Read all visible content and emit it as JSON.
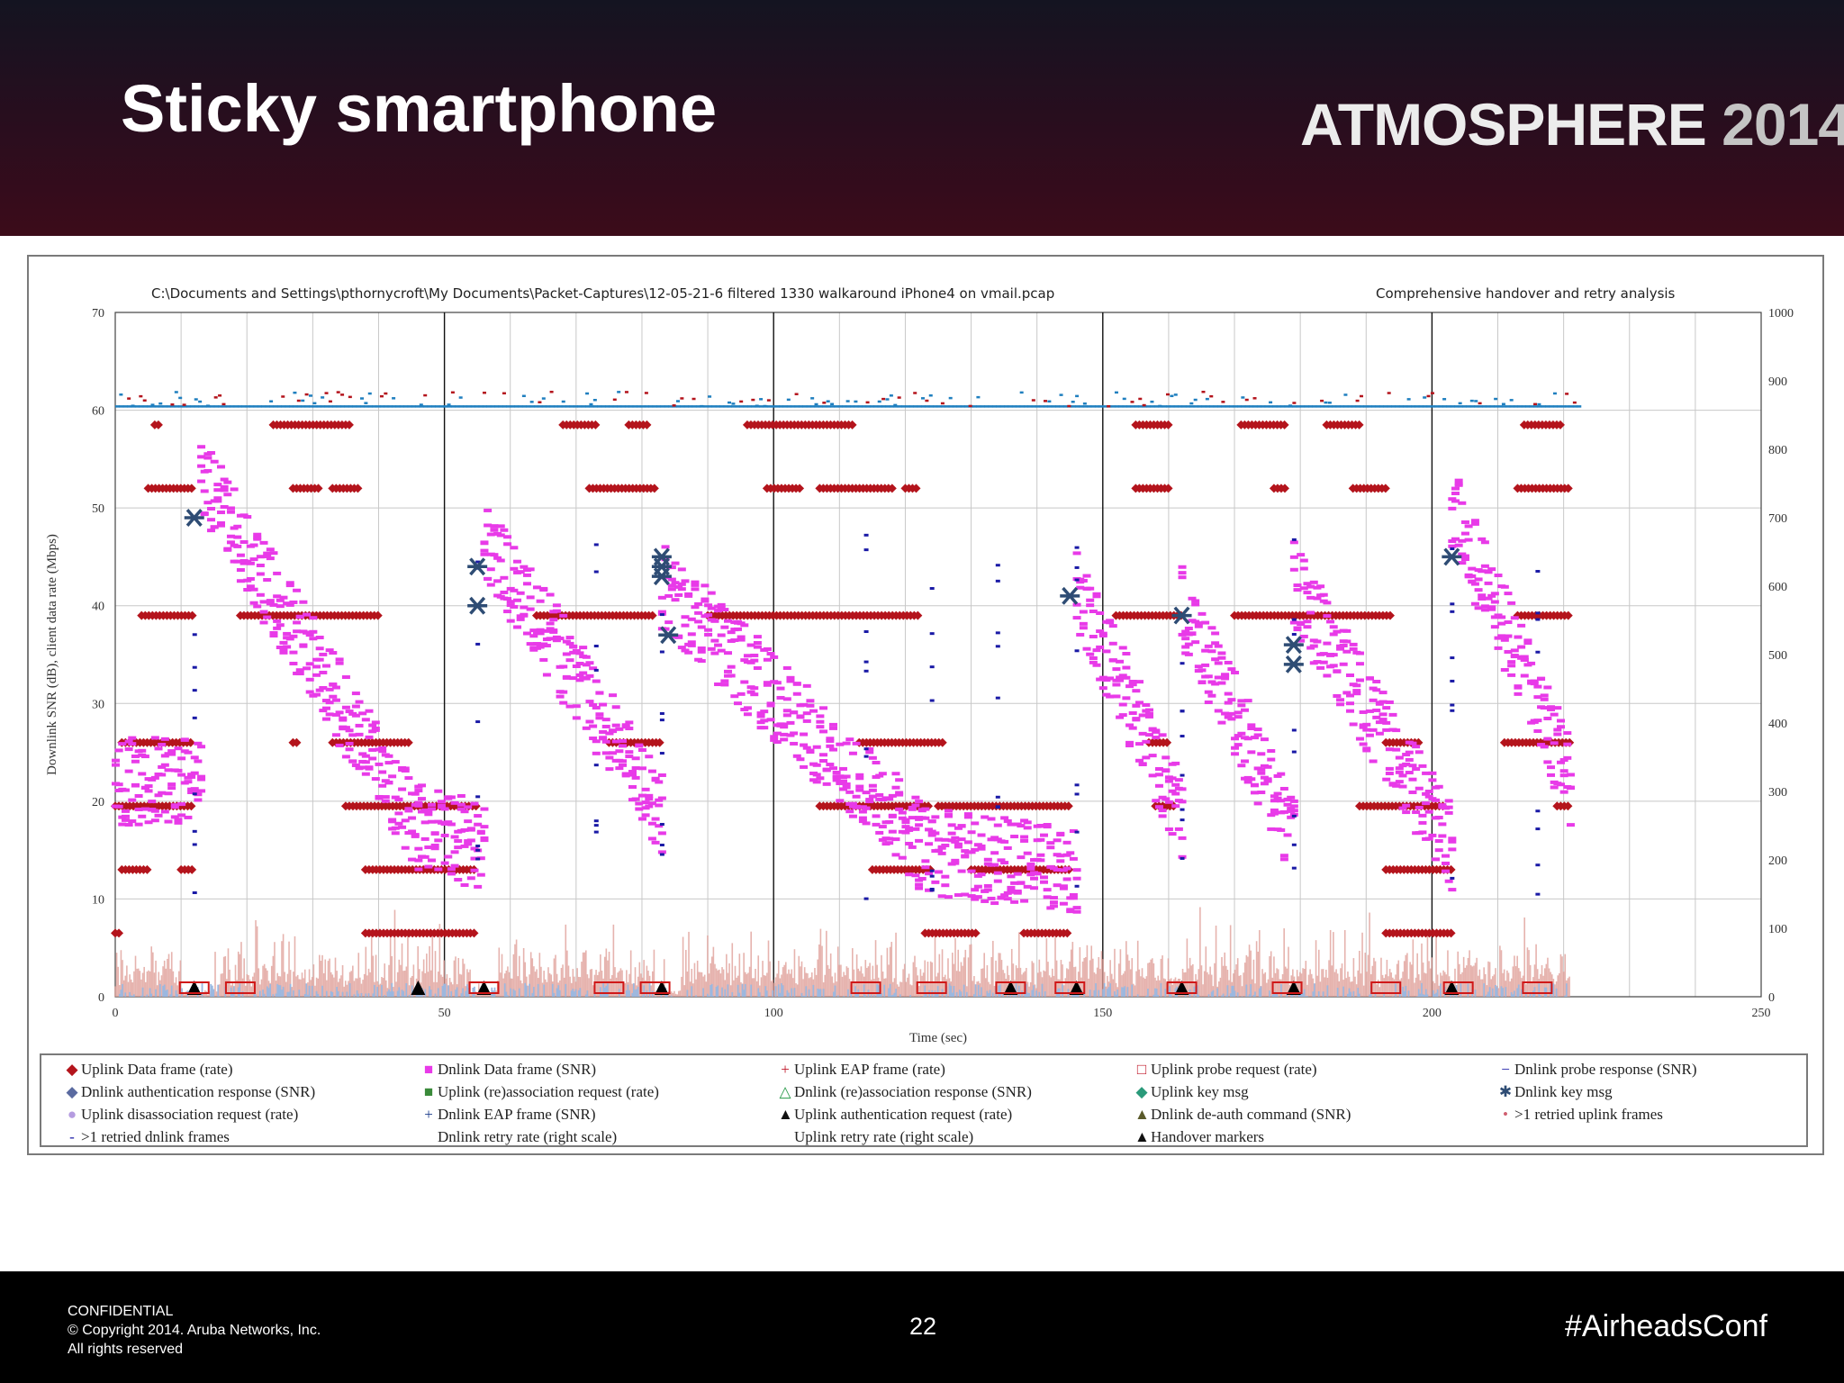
{
  "slide": {
    "title": "Sticky smartphone",
    "brand_name": "ATMOSPHERE",
    "brand_year": "2014"
  },
  "footer": {
    "confidential": "CONFIDENTIAL",
    "copyright": "© Copyright 2014. Aruba Networks, Inc.",
    "rights": "All rights reserved",
    "page_number": "22",
    "hashtag": "#AirheadsConf"
  },
  "colors": {
    "uplink_data": "#b4141c",
    "dnlink_data": "#e83ae8",
    "dnlink_probe": "#1a1aa6",
    "uplink_retry": "#e0a09a",
    "dnlink_retry": "#9bb8e0",
    "dnlink_key": "#2e4c74",
    "accent_top_blue": "#1f7fbf"
  },
  "chart_data": {
    "type": "scatter",
    "title": "C:\\Documents and Settings\\pthornycroft\\My Documents\\Packet-Captures\\12-05-21-6 filtered 1330 walkaround iPhone4 on vmail.pcap",
    "subtitle": "Comprehensive handover and retry analysis",
    "xlabel": "Time (sec)",
    "ylabel": "Downlink SNR (dB), client data rate (Mbps)",
    "xlim": [
      0,
      250
    ],
    "ylim": [
      0,
      70
    ],
    "y2lim": [
      0,
      1000
    ],
    "xticks": [
      "0",
      "50",
      "100",
      "150",
      "200",
      "250"
    ],
    "yticks": [
      "0",
      "10",
      "20",
      "30",
      "40",
      "50",
      "60",
      "70"
    ],
    "y2ticks": [
      "0",
      "100",
      "200",
      "300",
      "400",
      "500",
      "600",
      "700",
      "800",
      "900",
      "1000"
    ],
    "grid": true,
    "legend_position": "bottom",
    "handover_lines": [
      50,
      100,
      150,
      200
    ],
    "snr_segments": [
      {
        "x0": 0,
        "x1": 13,
        "y0": 22,
        "y1": 22
      },
      {
        "x0": 13,
        "x1": 46,
        "y0": 53,
        "y1": 17
      },
      {
        "x0": 46,
        "x1": 56,
        "y0": 18,
        "y1": 15
      },
      {
        "x0": 56,
        "x1": 83,
        "y0": 47,
        "y1": 19
      },
      {
        "x0": 83,
        "x1": 122,
        "y0": 42,
        "y1": 16
      },
      {
        "x0": 122,
        "x1": 146,
        "y0": 15,
        "y1": 13
      },
      {
        "x0": 146,
        "x1": 162,
        "y0": 42,
        "y1": 18
      },
      {
        "x0": 162,
        "x1": 179,
        "y0": 40,
        "y1": 16
      },
      {
        "x0": 179,
        "x1": 203,
        "y0": 42,
        "y1": 15
      },
      {
        "x0": 203,
        "x1": 221,
        "y0": 50,
        "y1": 22
      }
    ],
    "uplink_rate_levels": [
      {
        "y": 58.5,
        "ranges": [
          [
            6,
            7
          ],
          [
            24,
            36
          ],
          [
            68,
            73
          ],
          [
            78,
            81
          ],
          [
            96,
            112
          ],
          [
            155,
            160
          ],
          [
            171,
            178
          ],
          [
            184,
            189
          ],
          [
            214,
            220
          ]
        ]
      },
      {
        "y": 52,
        "ranges": [
          [
            5,
            12
          ],
          [
            27,
            31
          ],
          [
            33,
            37
          ],
          [
            72,
            82
          ],
          [
            99,
            104
          ],
          [
            107,
            118
          ],
          [
            120,
            122
          ],
          [
            155,
            160
          ],
          [
            176,
            178
          ],
          [
            188,
            193
          ],
          [
            213,
            221
          ]
        ]
      },
      {
        "y": 39,
        "ranges": [
          [
            4,
            12
          ],
          [
            19,
            40
          ],
          [
            64,
            82
          ],
          [
            90,
            122
          ],
          [
            152,
            162
          ],
          [
            170,
            194
          ],
          [
            213,
            221
          ]
        ]
      },
      {
        "y": 26,
        "ranges": [
          [
            1,
            12
          ],
          [
            27,
            28
          ],
          [
            33,
            45
          ],
          [
            75,
            83
          ],
          [
            113,
            126
          ],
          [
            157,
            160
          ],
          [
            193,
            198
          ],
          [
            211,
            221
          ]
        ]
      },
      {
        "y": 19.5,
        "ranges": [
          [
            0,
            12
          ],
          [
            35,
            55
          ],
          [
            107,
            124
          ],
          [
            125,
            145
          ],
          [
            158,
            161
          ],
          [
            189,
            202
          ],
          [
            219,
            221
          ]
        ]
      },
      {
        "y": 13,
        "ranges": [
          [
            1,
            5
          ],
          [
            10,
            12
          ],
          [
            38,
            55
          ],
          [
            115,
            124
          ],
          [
            130,
            145
          ],
          [
            193,
            203
          ]
        ]
      },
      {
        "y": 6.5,
        "ranges": [
          [
            0,
            1
          ],
          [
            38,
            55
          ],
          [
            123,
            131
          ],
          [
            138,
            145
          ],
          [
            193,
            203
          ]
        ]
      }
    ],
    "top_band": {
      "y_center": 60.5,
      "y_spread": 1.5,
      "range": [
        0,
        222
      ]
    },
    "key_messages": [
      {
        "x": 12,
        "y": 49
      },
      {
        "x": 55,
        "y": 44
      },
      {
        "x": 55,
        "y": 40
      },
      {
        "x": 83,
        "y": 45
      },
      {
        "x": 83,
        "y": 44
      },
      {
        "x": 83,
        "y": 43
      },
      {
        "x": 84,
        "y": 37
      },
      {
        "x": 145,
        "y": 41
      },
      {
        "x": 162,
        "y": 39
      },
      {
        "x": 179,
        "y": 36
      },
      {
        "x": 179,
        "y": 34
      },
      {
        "x": 203,
        "y": 45
      }
    ],
    "handover_markers": [
      12,
      46,
      56,
      83,
      136,
      146,
      162,
      179,
      203
    ],
    "probe_requests": [
      12,
      19,
      56,
      75,
      82,
      114,
      124,
      136,
      145,
      162,
      178,
      193,
      204,
      216
    ],
    "legend": [
      {
        "sym": "◆",
        "color": "#b4141c",
        "label": "Uplink Data frame (rate)"
      },
      {
        "sym": "■",
        "color": "#e83ae8",
        "label": "Dnlink Data frame (SNR)"
      },
      {
        "sym": "+",
        "color": "#c0182a",
        "label": "Uplink EAP frame (rate)"
      },
      {
        "sym": "□",
        "color": "#c0182a",
        "label": "Uplink probe request (rate)"
      },
      {
        "sym": "−",
        "color": "#1a1aa6",
        "label": "Dnlink probe response (SNR)"
      },
      {
        "sym": "◆",
        "color": "#5a6aa0",
        "label": "Dnlink authentication response (SNR)"
      },
      {
        "sym": "■",
        "color": "#3a8a3a",
        "label": "Uplink (re)association request (rate)"
      },
      {
        "sym": "△",
        "color": "#2a9a4a",
        "label": "Dnlink (re)association response (SNR)"
      },
      {
        "sym": "◆",
        "color": "#2a9a7a",
        "label": "Uplink key msg"
      },
      {
        "sym": "✱",
        "color": "#2e4c74",
        "label": "Dnlink key msg"
      },
      {
        "sym": "●",
        "color": "#b59ce0",
        "label": "Uplink disassociation request (rate)"
      },
      {
        "sym": "+",
        "color": "#1a3a8a",
        "label": "Dnlink EAP frame (SNR)"
      },
      {
        "sym": "▲",
        "color": "#111111",
        "label": "Uplink authentication request (rate)"
      },
      {
        "sym": "▲",
        "color": "#5a5a2a",
        "label": "Dnlink de-auth command (SNR)"
      },
      {
        "sym": "•",
        "color": "#d06070",
        "label": ">1 retried uplink frames"
      },
      {
        "sym": "-",
        "color": "#1a1aa6",
        "label": ">1 retried dnlink frames"
      },
      {
        "sym": "",
        "color": "#9bb8e0",
        "label": "Dnlink retry rate (right scale)"
      },
      {
        "sym": "",
        "color": "#e0a09a",
        "label": "Uplink retry rate (right scale)"
      },
      {
        "sym": "▲",
        "color": "#111111",
        "label": "Handover markers"
      }
    ]
  }
}
